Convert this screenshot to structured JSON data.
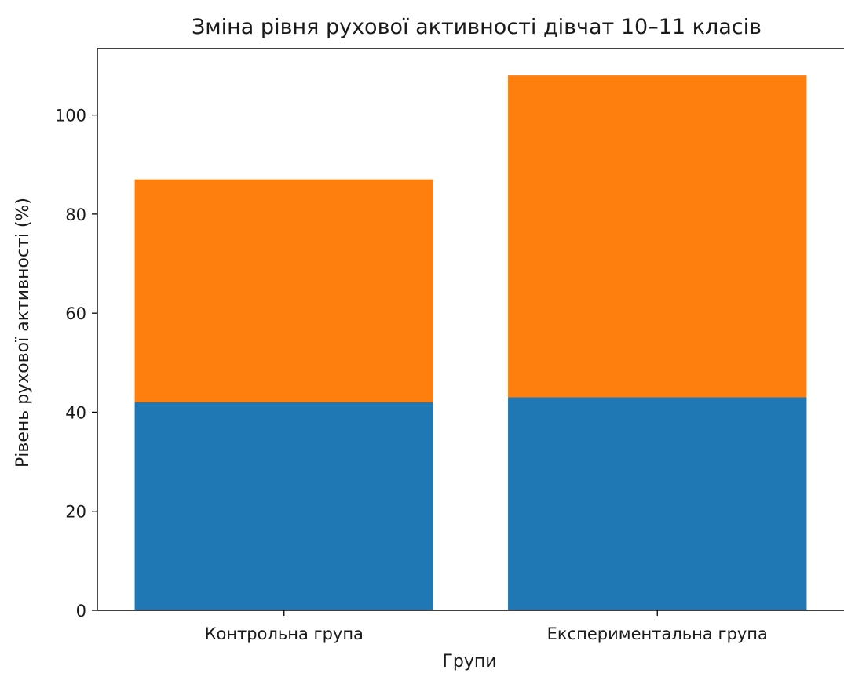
{
  "chart_data": {
    "type": "bar",
    "stacked": true,
    "title": "Зміна рівня рухової активності дівчат 10–11 класів",
    "xlabel": "Групи",
    "ylabel": "Рівень рухової активності (%)",
    "categories": [
      "Контрольна група",
      "Експериментальна група"
    ],
    "series": [
      {
        "color": "#1f77b4",
        "values": [
          42,
          43
        ]
      },
      {
        "color": "#ff7f0e",
        "values": [
          45,
          65
        ]
      }
    ],
    "ylim": [
      0,
      113.4
    ],
    "yticks": [
      0,
      20,
      40,
      60,
      80,
      100
    ],
    "grid": false,
    "legend": "none"
  }
}
